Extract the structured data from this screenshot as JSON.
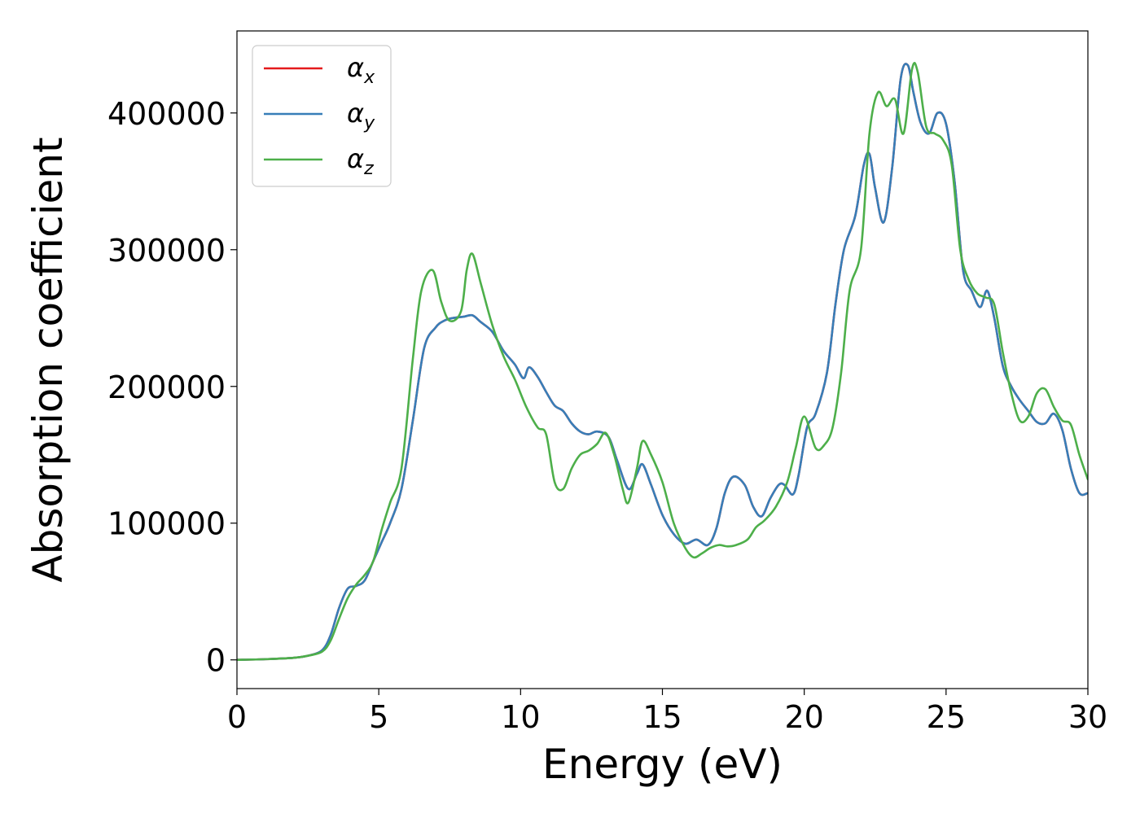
{
  "chart_data": {
    "type": "line",
    "xlabel": "Energy (eV)",
    "ylabel": "Absorption coefficient",
    "xlim": [
      0,
      30
    ],
    "ylim": [
      -21000,
      460000
    ],
    "xticks": [
      0,
      5,
      10,
      15,
      20,
      25,
      30
    ],
    "yticks": [
      0,
      100000,
      200000,
      300000,
      400000
    ],
    "grid": false,
    "legend_position": "top-left",
    "series": [
      {
        "name": "α",
        "subscript": "x",
        "color": "#e41a1c",
        "x": [
          0,
          1,
          2,
          2.5,
          3,
          3.3,
          3.6,
          3.9,
          4.2,
          4.5,
          4.8,
          5.1,
          5.4,
          5.8,
          6.2,
          6.6,
          7.0,
          7.3,
          7.6,
          8.0,
          8.3,
          8.6,
          9.0,
          9.4,
          9.8,
          10.1,
          10.3,
          10.6,
          10.9,
          11.2,
          11.5,
          11.8,
          12.1,
          12.4,
          12.7,
          13.1,
          13.4,
          13.8,
          14.1,
          14.3,
          14.6,
          15.0,
          15.4,
          15.8,
          16.2,
          16.6,
          16.9,
          17.2,
          17.5,
          17.9,
          18.2,
          18.5,
          18.8,
          19.1,
          19.3,
          19.6,
          19.8,
          20.1,
          20.4,
          20.8,
          21.1,
          21.4,
          21.8,
          22.1,
          22.3,
          22.5,
          22.8,
          23.1,
          23.4,
          23.65,
          23.85,
          24.1,
          24.4,
          24.7,
          25.0,
          25.3,
          25.6,
          25.9,
          26.2,
          26.45,
          26.7,
          27.0,
          27.3,
          27.6,
          27.9,
          28.2,
          28.5,
          28.8,
          29.1,
          29.4,
          29.7,
          30.0
        ],
        "y": [
          0,
          500,
          1500,
          3000,
          7000,
          18000,
          38000,
          52000,
          54000,
          58000,
          72000,
          86000,
          100000,
          125000,
          175000,
          228000,
          243000,
          248000,
          250000,
          251000,
          252000,
          247000,
          240000,
          226000,
          216000,
          206000,
          214000,
          207000,
          196000,
          186000,
          182000,
          173000,
          167000,
          165000,
          167000,
          163000,
          146000,
          125000,
          136000,
          143000,
          128000,
          106000,
          92000,
          85000,
          88000,
          84000,
          96000,
          122000,
          134000,
          128000,
          112000,
          105000,
          118000,
          128000,
          128000,
          121000,
          135000,
          170000,
          180000,
          210000,
          260000,
          300000,
          325000,
          362000,
          370000,
          345000,
          320000,
          360000,
          425000,
          435000,
          415000,
          393000,
          385000,
          400000,
          392000,
          350000,
          285000,
          270000,
          258000,
          270000,
          250000,
          215000,
          200000,
          190000,
          182000,
          174000,
          173000,
          180000,
          168000,
          140000,
          122000,
          122000
        ]
      },
      {
        "name": "α",
        "subscript": "y",
        "color": "#377eb8",
        "x": [
          0,
          1,
          2,
          2.5,
          3,
          3.3,
          3.6,
          3.9,
          4.2,
          4.5,
          4.8,
          5.1,
          5.4,
          5.8,
          6.2,
          6.6,
          7.0,
          7.3,
          7.6,
          8.0,
          8.3,
          8.6,
          9.0,
          9.4,
          9.8,
          10.1,
          10.3,
          10.6,
          10.9,
          11.2,
          11.5,
          11.8,
          12.1,
          12.4,
          12.7,
          13.1,
          13.4,
          13.8,
          14.1,
          14.3,
          14.6,
          15.0,
          15.4,
          15.8,
          16.2,
          16.6,
          16.9,
          17.2,
          17.5,
          17.9,
          18.2,
          18.5,
          18.8,
          19.1,
          19.3,
          19.6,
          19.8,
          20.1,
          20.4,
          20.8,
          21.1,
          21.4,
          21.8,
          22.1,
          22.3,
          22.5,
          22.8,
          23.1,
          23.4,
          23.65,
          23.85,
          24.1,
          24.4,
          24.7,
          25.0,
          25.3,
          25.6,
          25.9,
          26.2,
          26.45,
          26.7,
          27.0,
          27.3,
          27.6,
          27.9,
          28.2,
          28.5,
          28.8,
          29.1,
          29.4,
          29.7,
          30.0
        ],
        "y": [
          0,
          500,
          1500,
          3000,
          7000,
          18000,
          38000,
          52000,
          54000,
          58000,
          72000,
          86000,
          100000,
          125000,
          175000,
          228000,
          243000,
          248000,
          250000,
          251000,
          252000,
          247000,
          240000,
          226000,
          216000,
          206000,
          214000,
          207000,
          196000,
          186000,
          182000,
          173000,
          167000,
          165000,
          167000,
          163000,
          146000,
          125000,
          136000,
          143000,
          128000,
          106000,
          92000,
          85000,
          88000,
          84000,
          96000,
          122000,
          134000,
          128000,
          112000,
          105000,
          118000,
          128000,
          128000,
          121000,
          135000,
          170000,
          180000,
          210000,
          260000,
          300000,
          325000,
          362000,
          370000,
          345000,
          320000,
          360000,
          425000,
          435000,
          415000,
          393000,
          385000,
          400000,
          392000,
          350000,
          285000,
          270000,
          258000,
          270000,
          250000,
          215000,
          200000,
          190000,
          182000,
          174000,
          173000,
          180000,
          168000,
          140000,
          122000,
          122000
        ]
      },
      {
        "name": "α",
        "subscript": "z",
        "color": "#4daf4a",
        "x": [
          0,
          1,
          2,
          2.5,
          3,
          3.3,
          3.6,
          3.9,
          4.2,
          4.5,
          4.8,
          5.1,
          5.4,
          5.8,
          6.2,
          6.5,
          6.9,
          7.2,
          7.5,
          7.9,
          8.1,
          8.3,
          8.6,
          9.0,
          9.4,
          9.8,
          10.2,
          10.6,
          10.9,
          11.2,
          11.5,
          11.8,
          12.1,
          12.4,
          12.7,
          13.0,
          13.3,
          13.6,
          13.8,
          14.1,
          14.3,
          14.6,
          15.0,
          15.4,
          15.8,
          16.1,
          16.4,
          16.7,
          17.0,
          17.3,
          17.6,
          18.0,
          18.3,
          18.6,
          19.0,
          19.4,
          19.7,
          20.0,
          20.4,
          20.7,
          21.0,
          21.3,
          21.6,
          22.0,
          22.3,
          22.6,
          22.9,
          23.2,
          23.5,
          23.8,
          24.0,
          24.3,
          24.6,
          24.9,
          25.2,
          25.5,
          25.8,
          26.1,
          26.4,
          26.7,
          27.0,
          27.3,
          27.6,
          27.9,
          28.2,
          28.5,
          28.8,
          29.1,
          29.4,
          29.7,
          30.0
        ],
        "y": [
          0,
          500,
          1500,
          3000,
          6000,
          14000,
          30000,
          45000,
          55000,
          62000,
          72000,
          95000,
          115000,
          140000,
          220000,
          270000,
          285000,
          262000,
          248000,
          255000,
          285000,
          297000,
          275000,
          245000,
          222000,
          205000,
          185000,
          170000,
          165000,
          130000,
          125000,
          140000,
          150000,
          153000,
          158000,
          166000,
          150000,
          125000,
          115000,
          140000,
          160000,
          150000,
          130000,
          100000,
          82000,
          75000,
          78000,
          82000,
          84000,
          83000,
          84000,
          88000,
          97000,
          102000,
          112000,
          130000,
          155000,
          178000,
          155000,
          157000,
          170000,
          210000,
          270000,
          300000,
          385000,
          415000,
          405000,
          410000,
          385000,
          432000,
          430000,
          390000,
          385000,
          380000,
          362000,
          300000,
          278000,
          268000,
          265000,
          260000,
          225000,
          195000,
          175000,
          178000,
          195000,
          198000,
          185000,
          175000,
          172000,
          150000,
          132000
        ]
      }
    ]
  }
}
